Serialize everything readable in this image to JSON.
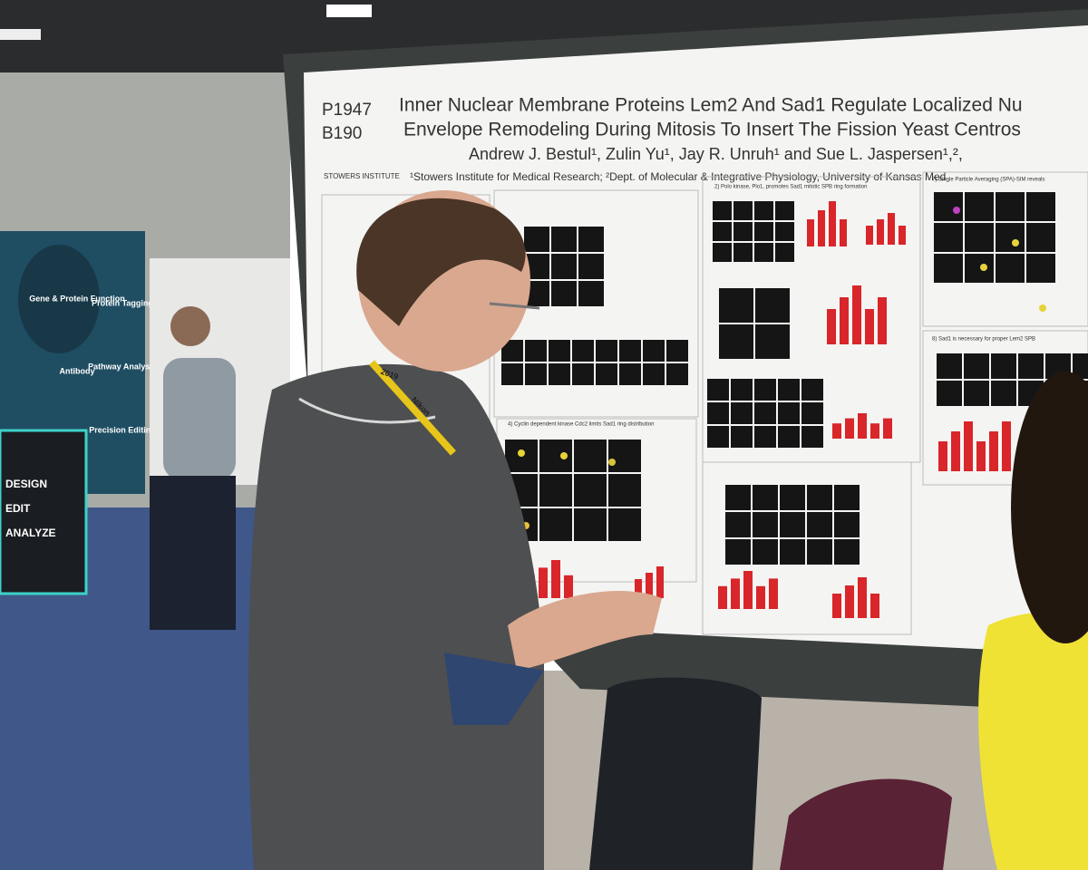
{
  "poster": {
    "ids": [
      "P1947",
      "B190"
    ],
    "title": [
      "Inner Nuclear Membrane Proteins Lem2 And Sad1 Regulate Localized Nu",
      "Envelope Remodeling During Mitosis To Insert The Fission Yeast Centros"
    ],
    "authors": "Andrew J. Bestul¹, Zulin Yu¹, Jay R. Unruh¹ and Sue L. Jaspersen¹,²,",
    "affiliations": "¹Stowers Institute for Medical Research; ²Dept. of Molecular & Integrative Physiology, University of Kansas Med",
    "logo": "STOWERS INSTITUTE",
    "sections": [
      "2) Polo kinase, Plo1, promotes Sad1 mitotic SPB ring formation",
      "7) Single Particle Averaging (SPA)-SIM reveals",
      "8) Sad1 is necessary for proper Lem2 SPB",
      "4) Cyclin dependent kinase Cdc2 limits Sad1 ring distribution"
    ]
  },
  "booth": {
    "items": [
      "Gene & Protein Function",
      "Protein Tagging",
      "Pathway Analysis",
      "Antibody",
      "Precision Editing"
    ],
    "kiosk": [
      "DESIGN",
      "EDIT",
      "ANALYZE"
    ]
  },
  "lanyard": [
    "2019",
    "Nikon"
  ]
}
